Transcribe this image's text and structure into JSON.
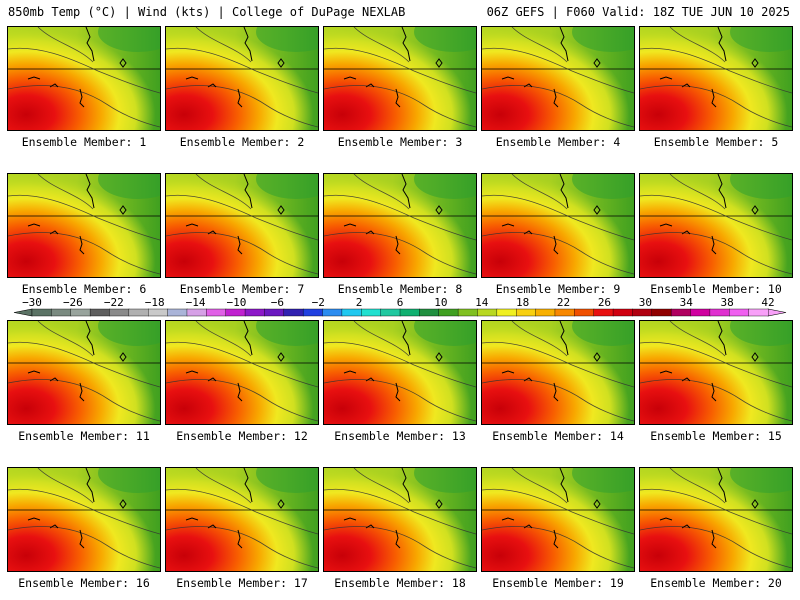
{
  "header": {
    "left": "850mb Temp (°C) | Wind (kts) | College of DuPage NEXLAB",
    "right": "06Z GEFS | F060 Valid: 18Z TUE JUN 10 2025"
  },
  "colorbar": {
    "labels": [
      -30,
      -26,
      -22,
      -18,
      -14,
      -10,
      -6,
      -2,
      2,
      6,
      10,
      14,
      18,
      22,
      26,
      30,
      34,
      38,
      42
    ],
    "colors": [
      "#5b7365",
      "#7a8a80",
      "#98a39c",
      "#5f5f5f",
      "#8a8a8a",
      "#b0b0b0",
      "#c9c9c9",
      "#aab4d8",
      "#d6a0e6",
      "#e060e6",
      "#c020d0",
      "#8c18c8",
      "#6a18c0",
      "#3020b0",
      "#2040e0",
      "#2c8cf0",
      "#20c8f0",
      "#20e0d0",
      "#20c8a0",
      "#10b070",
      "#209040",
      "#40a020",
      "#80c020",
      "#b8d820",
      "#f0f020",
      "#f8d010",
      "#f8b000",
      "#f88800",
      "#f05000",
      "#e81010",
      "#d00010",
      "#b00010",
      "#900000",
      "#b00060",
      "#d000a0",
      "#e030d0",
      "#f060f0",
      "#f8a0f8"
    ]
  },
  "members": [
    {
      "label": "Ensemble Member: 1"
    },
    {
      "label": "Ensemble Member: 2"
    },
    {
      "label": "Ensemble Member: 3"
    },
    {
      "label": "Ensemble Member: 4"
    },
    {
      "label": "Ensemble Member: 5"
    },
    {
      "label": "Ensemble Member: 6"
    },
    {
      "label": "Ensemble Member: 7"
    },
    {
      "label": "Ensemble Member: 8"
    },
    {
      "label": "Ensemble Member: 9"
    },
    {
      "label": "Ensemble Member: 10"
    },
    {
      "label": "Ensemble Member: 11"
    },
    {
      "label": "Ensemble Member: 12"
    },
    {
      "label": "Ensemble Member: 13"
    },
    {
      "label": "Ensemble Member: 14"
    },
    {
      "label": "Ensemble Member: 15"
    },
    {
      "label": "Ensemble Member: 16"
    },
    {
      "label": "Ensemble Member: 17"
    },
    {
      "label": "Ensemble Member: 18"
    },
    {
      "label": "Ensemble Member: 19"
    },
    {
      "label": "Ensemble Member: 20"
    }
  ]
}
